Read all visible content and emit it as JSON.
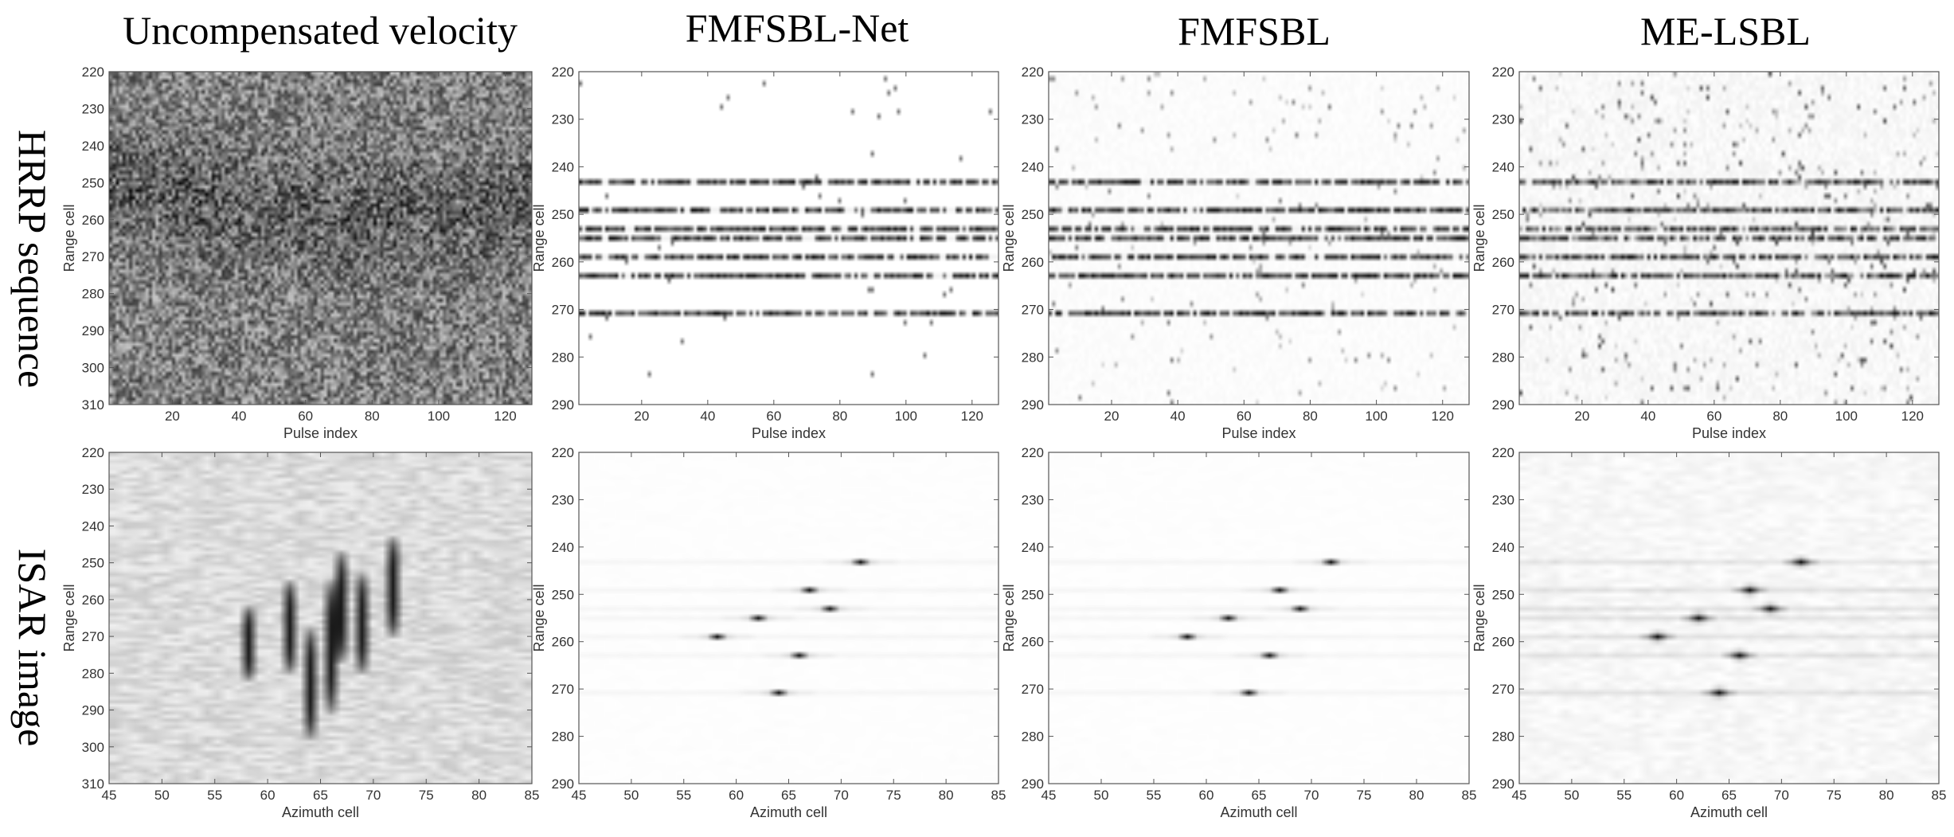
{
  "column_titles": [
    "Uncompensated velocity",
    "FMFSBL-Net",
    "FMFSBL",
    "ME-LSBL"
  ],
  "row_titles": [
    "HRRP sequence",
    "ISAR image"
  ],
  "chart_data": [
    {
      "type": "heatmap",
      "row": 0,
      "col": 0,
      "style": "noise_drift",
      "xlabel": "Pulse index",
      "ylabel": "Range cell",
      "xlim": [
        1,
        128
      ],
      "ylim": [
        220,
        310
      ],
      "xticks": [
        20,
        40,
        60,
        80,
        100,
        120
      ],
      "yticks": [
        220,
        230,
        240,
        250,
        260,
        270,
        280,
        290,
        300,
        310
      ]
    },
    {
      "type": "heatmap",
      "row": 0,
      "col": 1,
      "style": "stripes",
      "noise": 0.0,
      "xlabel": "Pulse index",
      "ylabel": "Range cell",
      "xlim": [
        1,
        128
      ],
      "ylim": [
        220,
        290
      ],
      "xticks": [
        20,
        40,
        60,
        80,
        100,
        120
      ],
      "yticks": [
        220,
        230,
        240,
        250,
        260,
        270,
        280,
        290
      ],
      "stripe_rows": [
        243,
        249,
        253,
        255,
        259,
        263,
        271
      ]
    },
    {
      "type": "heatmap",
      "row": 0,
      "col": 2,
      "style": "stripes",
      "noise": 0.15,
      "xlabel": "Pulse index",
      "ylabel": "Range cell",
      "xlim": [
        1,
        128
      ],
      "ylim": [
        220,
        290
      ],
      "xticks": [
        20,
        40,
        60,
        80,
        100,
        120
      ],
      "yticks": [
        220,
        230,
        240,
        250,
        260,
        270,
        280,
        290
      ],
      "stripe_rows": [
        243,
        249,
        253,
        255,
        259,
        263,
        271
      ]
    },
    {
      "type": "heatmap",
      "row": 0,
      "col": 3,
      "style": "stripes",
      "noise": 0.35,
      "xlabel": "Pulse index",
      "ylabel": "Range cell",
      "xlim": [
        1,
        128
      ],
      "ylim": [
        220,
        290
      ],
      "xticks": [
        20,
        40,
        60,
        80,
        100,
        120
      ],
      "yticks": [
        220,
        230,
        240,
        250,
        260,
        270,
        280,
        290
      ],
      "stripe_rows": [
        243,
        249,
        253,
        255,
        259,
        263,
        271
      ]
    },
    {
      "type": "heatmap",
      "row": 1,
      "col": 0,
      "style": "smeared",
      "xlabel": "Azimuth cell",
      "ylabel": "Range cell",
      "xlim": [
        45,
        85
      ],
      "ylim": [
        220,
        310
      ],
      "xticks": [
        45,
        50,
        55,
        60,
        65,
        70,
        75,
        80,
        85
      ],
      "yticks": [
        220,
        230,
        240,
        250,
        260,
        270,
        280,
        290,
        300,
        310
      ],
      "smears": [
        {
          "x": 58,
          "y0": 262,
          "y1": 282
        },
        {
          "x": 62,
          "y0": 255,
          "y1": 280
        },
        {
          "x": 64,
          "y0": 268,
          "y1": 298
        },
        {
          "x": 66,
          "y0": 255,
          "y1": 291
        },
        {
          "x": 67,
          "y0": 247,
          "y1": 277
        },
        {
          "x": 69,
          "y0": 253,
          "y1": 280
        },
        {
          "x": 72,
          "y0": 243,
          "y1": 270
        }
      ]
    },
    {
      "type": "heatmap",
      "row": 1,
      "col": 1,
      "style": "points",
      "noise": 0.0,
      "xlabel": "Azimuth cell",
      "ylabel": "Range cell",
      "xlim": [
        45,
        85
      ],
      "ylim": [
        220,
        290
      ],
      "xticks": [
        45,
        50,
        55,
        60,
        65,
        70,
        75,
        80,
        85
      ],
      "yticks": [
        220,
        230,
        240,
        250,
        260,
        270,
        280,
        290
      ],
      "stripe_rows": [
        243,
        249,
        253,
        255,
        259,
        263,
        271
      ],
      "points": [
        [
          72,
          243
        ],
        [
          67,
          249
        ],
        [
          69,
          253
        ],
        [
          62,
          255
        ],
        [
          58,
          259
        ],
        [
          66,
          263
        ],
        [
          64,
          271
        ]
      ]
    },
    {
      "type": "heatmap",
      "row": 1,
      "col": 2,
      "style": "points",
      "noise": 0.0,
      "xlabel": "Azimuth cell",
      "ylabel": "Range cell",
      "xlim": [
        45,
        85
      ],
      "ylim": [
        220,
        290
      ],
      "xticks": [
        45,
        50,
        55,
        60,
        65,
        70,
        75,
        80,
        85
      ],
      "yticks": [
        220,
        230,
        240,
        250,
        260,
        270,
        280,
        290
      ],
      "stripe_rows": [
        243,
        249,
        253,
        255,
        259,
        263,
        271
      ],
      "points": [
        [
          72,
          243
        ],
        [
          67,
          249
        ],
        [
          69,
          253
        ],
        [
          62,
          255
        ],
        [
          58,
          259
        ],
        [
          66,
          263
        ],
        [
          64,
          271
        ]
      ]
    },
    {
      "type": "heatmap",
      "row": 1,
      "col": 3,
      "style": "points",
      "noise": 0.12,
      "xlabel": "Azimuth cell",
      "ylabel": "Range cell",
      "xlim": [
        45,
        85
      ],
      "ylim": [
        220,
        290
      ],
      "xticks": [
        45,
        50,
        55,
        60,
        65,
        70,
        75,
        80,
        85
      ],
      "yticks": [
        220,
        230,
        240,
        250,
        260,
        270,
        280,
        290
      ],
      "stripe_rows": [
        243,
        249,
        253,
        255,
        259,
        263,
        271
      ],
      "points": [
        [
          72,
          243
        ],
        [
          67,
          249
        ],
        [
          69,
          253
        ],
        [
          62,
          255
        ],
        [
          58,
          259
        ],
        [
          66,
          263
        ],
        [
          64,
          271
        ]
      ]
    }
  ]
}
